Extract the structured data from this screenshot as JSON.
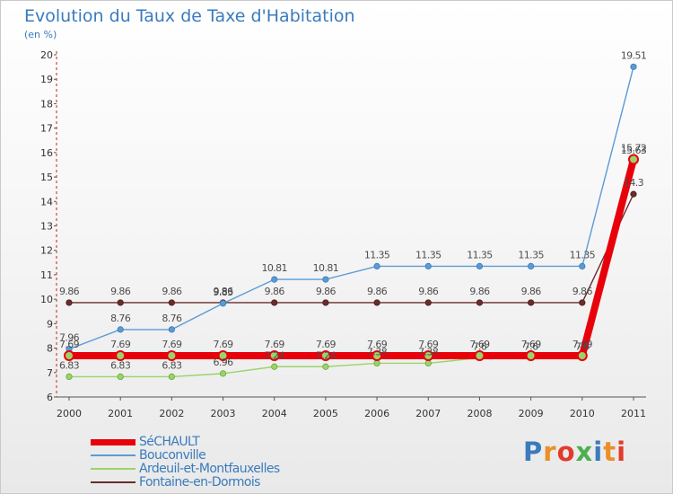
{
  "header": {
    "title": "Evolution du Taux de Taxe d'Habitation",
    "subtitle": "(en %)"
  },
  "logo": {
    "text": "Proxiti",
    "letter_colors": [
      "#3a7bbd",
      "#e8902a",
      "#e33b2b",
      "#4caf50",
      "#3a7bbd",
      "#e8902a",
      "#e33b2b"
    ]
  },
  "chart_data": {
    "type": "line",
    "title": "Evolution du Taux de Taxe d'Habitation",
    "ylabel": "(en %)",
    "xlabel": "",
    "ylim": [
      6,
      20
    ],
    "grid": false,
    "legend_position": "bottom-left",
    "categories": [
      "2000",
      "2001",
      "2002",
      "2003",
      "2004",
      "2005",
      "2006",
      "2007",
      "2008",
      "2009",
      "2010",
      "2011"
    ],
    "y_ticks": [
      "6",
      "7",
      "8",
      "9",
      "10",
      "11",
      "12",
      "13",
      "14",
      "15",
      "16",
      "17",
      "18",
      "19",
      "20"
    ],
    "series": [
      {
        "name": "Fontaine-en-Dormois",
        "color": "#6b2c2c",
        "values": [
          9.86,
          9.86,
          9.86,
          9.86,
          9.86,
          9.86,
          9.86,
          9.86,
          9.86,
          9.86,
          9.86,
          14.3
        ],
        "labels": [
          "9.86",
          "9.86",
          "9.86",
          "9.86",
          "9.86",
          "9.86",
          "9.86",
          "9.86",
          "9.86",
          "9.86",
          "9.86",
          "14.3"
        ]
      },
      {
        "name": "Bouconville",
        "color": "#5b9bd5",
        "values": [
          7.96,
          8.76,
          8.76,
          9.83,
          10.81,
          10.81,
          11.35,
          11.35,
          11.35,
          11.35,
          11.35,
          19.51
        ],
        "labels": [
          "7.96",
          "8.76",
          "8.76",
          "9.83",
          "10.81",
          "10.81",
          "11.35",
          "11.35",
          "11.35",
          "11.35",
          "11.35",
          "19.51"
        ]
      },
      {
        "name": "Ardeuil-et-Montfauxelles",
        "color": "#9ad36a",
        "values": [
          6.83,
          6.83,
          6.83,
          6.96,
          7.24,
          7.24,
          7.38,
          7.38,
          7.6,
          7.6,
          7.6,
          15.63
        ],
        "labels": [
          "6.83",
          "6.83",
          "6.83",
          "6.96",
          "7.24",
          "7.24",
          "7.38",
          "7.38",
          "7.6",
          "7.6",
          "7.6",
          "15.63"
        ]
      },
      {
        "name": "SéCHAULT",
        "color": "#e8000b",
        "values": [
          7.69,
          7.69,
          7.69,
          7.69,
          7.69,
          7.69,
          7.69,
          7.69,
          7.69,
          7.69,
          7.69,
          15.72
        ],
        "labels": [
          "7.69",
          "7.69",
          "7.69",
          "7.69",
          "7.69",
          "7.69",
          "7.69",
          "7.69",
          "7.69",
          "7.69",
          "7.69",
          "15.72"
        ]
      }
    ],
    "legend": [
      "SéCHAULT",
      "Bouconville",
      "Ardeuil-et-Montfauxelles",
      "Fontaine-en-Dormois"
    ]
  }
}
